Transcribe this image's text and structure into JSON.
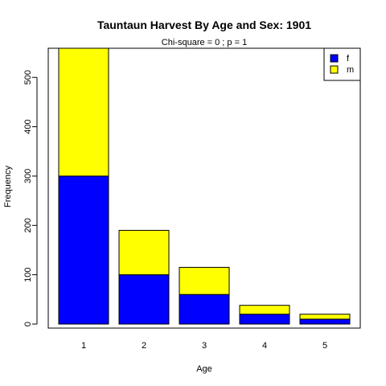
{
  "chart_data": {
    "type": "bar",
    "stacked": true,
    "title": "Tauntaun Harvest By Age and Sex: 1901",
    "subtitle": "Chi-square = 0 ; p = 1",
    "xlabel": "Age",
    "ylabel": "Frequency",
    "categories": [
      "1",
      "2",
      "3",
      "4",
      "5"
    ],
    "series": [
      {
        "name": "f",
        "color": "#0000ff",
        "values": [
          300,
          100,
          60,
          20,
          10
        ]
      },
      {
        "name": "m",
        "color": "#ffff00",
        "values": [
          270,
          90,
          55,
          18,
          10
        ]
      }
    ],
    "ylim": [
      0,
      570
    ],
    "yticks": [
      0,
      100,
      200,
      300,
      400,
      500
    ],
    "legend_position": "top-right",
    "grid": false
  }
}
